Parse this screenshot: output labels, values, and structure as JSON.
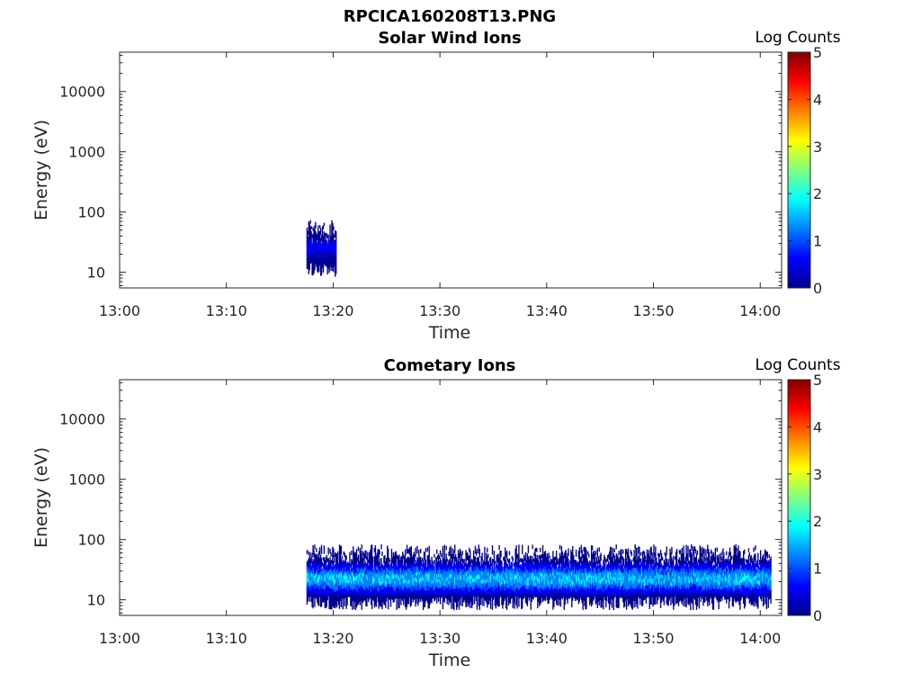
{
  "figure_title": "RPCICA160208T13.PNG",
  "colormap": [
    "#00008f",
    "#0000ff",
    "#0080ff",
    "#00ffff",
    "#80ff80",
    "#ffff00",
    "#ff8000",
    "#ff0000",
    "#800000"
  ],
  "chart_data": [
    {
      "type": "heatmap",
      "title": "Solar Wind Ions",
      "xlabel": "Time",
      "ylabel": "Energy (eV)",
      "x_ticks": [
        "13:00",
        "13:10",
        "13:20",
        "13:30",
        "13:40",
        "13:50",
        "14:00"
      ],
      "xlim": [
        "13:00",
        "14:02"
      ],
      "y_scale": "log",
      "y_ticks": [
        "10",
        "100",
        "1000",
        "10000"
      ],
      "ylim": [
        5.5,
        45000
      ],
      "colorbar": {
        "label": "Log Counts",
        "ticks": [
          "0",
          "1",
          "2",
          "3",
          "4",
          "5"
        ],
        "range": [
          0,
          5
        ]
      },
      "regions": [
        {
          "t_start": "13:17.5",
          "t_end": "13:20.3",
          "e_low": 10,
          "e_high": 75,
          "peak_e": 25,
          "level": 0.8
        }
      ]
    },
    {
      "type": "heatmap",
      "title": "Cometary Ions",
      "xlabel": "Time",
      "ylabel": "Energy (eV)",
      "x_ticks": [
        "13:00",
        "13:10",
        "13:20",
        "13:30",
        "13:40",
        "13:50",
        "14:00"
      ],
      "xlim": [
        "13:00",
        "14:02"
      ],
      "y_scale": "log",
      "y_ticks": [
        "10",
        "100",
        "1000",
        "10000"
      ],
      "ylim": [
        5.5,
        45000
      ],
      "colorbar": {
        "label": "Log Counts",
        "ticks": [
          "0",
          "1",
          "2",
          "3",
          "4",
          "5"
        ],
        "range": [
          0,
          5
        ]
      },
      "regions": [
        {
          "t_start": "13:17.5",
          "t_end": "14:01",
          "e_low": 8,
          "e_high": 80,
          "peak_e": 22,
          "level": 1.8
        }
      ]
    }
  ]
}
